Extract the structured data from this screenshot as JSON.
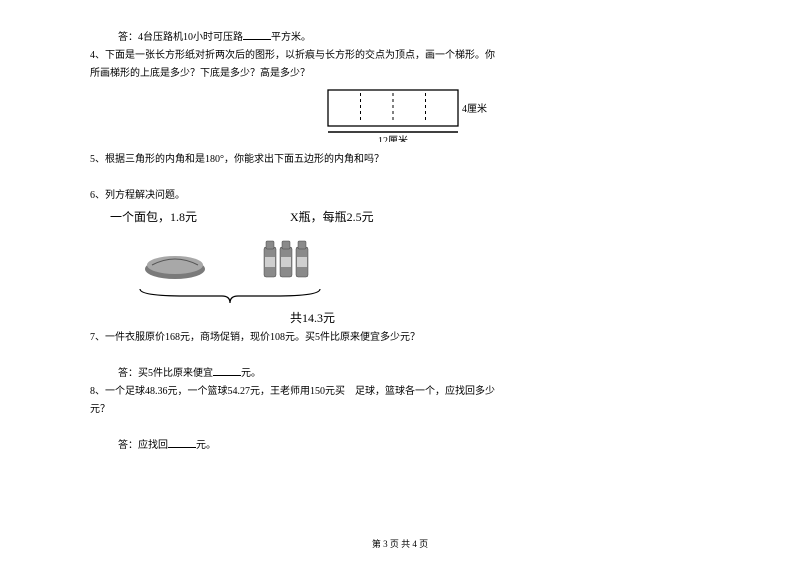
{
  "q3_answer_prefix": "答：4台压路机10小时可压路",
  "q3_answer_suffix": "平方米。",
  "q4_label": "4、",
  "q4_line1": "下面是一张长方形纸对折两次后的图形，以折痕与长方形的交点为顶点，画一个梯形。你",
  "q4_line2": "所画梯形的上底是多少？下底是多少？高是多少？",
  "q4_diagram": {
    "height_label": "4厘米",
    "width_label": "12厘米",
    "outer_width": 130,
    "outer_height": 36,
    "fold_count": 3,
    "stroke": "#000000"
  },
  "q5_label": "5、",
  "q5_text": "根据三角形的内角和是180°，你能求出下面五边形的内角和吗？",
  "q6_label": "6、",
  "q6_text": "列方程解决问题。",
  "q6_bread_label": "一个面包，1.8元",
  "q6_bottle_label": "X瓶，每瓶2.5元",
  "q6_total": "共14.3元",
  "q7_label": "7、",
  "q7_text": "一件衣服原价168元，商场促销，现价108元。买5件比原来便宜多少元？",
  "q7_answer_prefix": "答：买5件比原来便宜",
  "q7_answer_suffix": "元。",
  "q8_label": "8、",
  "q8_line1": "一个足球48.36元，一个篮球54.27元，王老师用150元买　足球，篮球各一个，应找回多少",
  "q8_line2": "元？",
  "q8_answer_prefix": "答：应找回",
  "q8_answer_suffix": "元。",
  "footer": "第 3 页 共 4 页"
}
